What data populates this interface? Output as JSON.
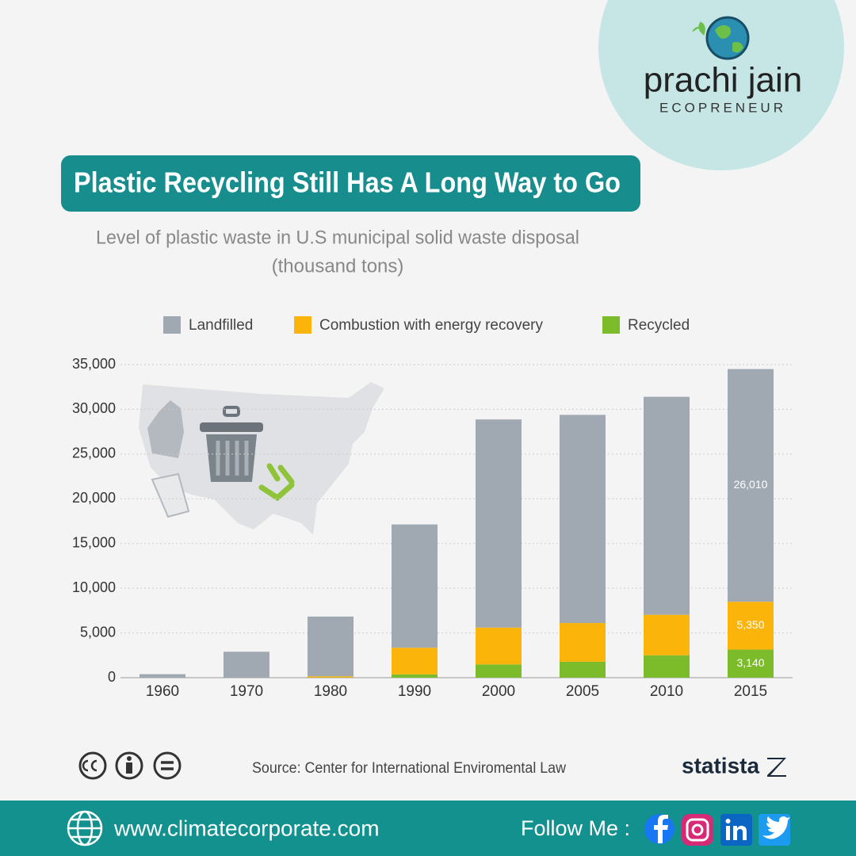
{
  "brand": {
    "name": "prachi jain",
    "tagline": "ECOPRENEUR"
  },
  "chart_data": {
    "type": "stacked-bar",
    "title": "Plastic Recycling Still Has A Long Way to Go",
    "subtitle": [
      "Level of plastic waste in U.S municipal solid waste disposal",
      "(thousand tons)"
    ],
    "categories": [
      "1960",
      "1970",
      "1980",
      "1990",
      "2000",
      "2005",
      "2010",
      "2015"
    ],
    "series": [
      {
        "name": "Recycled",
        "color": "#7cbc2a",
        "values": [
          0,
          0,
          20,
          370,
          1480,
          1780,
          2500,
          3140
        ],
        "value_labels": [
          null,
          null,
          null,
          null,
          null,
          null,
          null,
          "3,140"
        ]
      },
      {
        "name": "Combustion with energy recovery",
        "color": "#fbb40a",
        "values": [
          0,
          0,
          140,
          2980,
          4120,
          4330,
          4530,
          5350
        ],
        "value_labels": [
          null,
          null,
          null,
          null,
          null,
          null,
          null,
          "5,350"
        ]
      },
      {
        "name": "Landfilled",
        "color": "#a0a9b2",
        "values": [
          390,
          2900,
          6670,
          13780,
          23270,
          23270,
          24370,
          26010
        ],
        "value_labels": [
          null,
          null,
          null,
          null,
          null,
          null,
          null,
          "26,010"
        ]
      }
    ],
    "legend_order": [
      2,
      1,
      0
    ],
    "ylim": [
      0,
      35000
    ],
    "yticks": [
      0,
      {
        "value": 5000,
        "label": "5,000"
      },
      {
        "value": 10000,
        "label": "10,000"
      },
      {
        "value": 15000,
        "label": "15,000"
      },
      {
        "value": 20000,
        "label": "20,000"
      },
      {
        "value": 25000,
        "label": "25,000"
      },
      {
        "value": 30000,
        "label": "30,000"
      },
      {
        "value": 35000,
        "label": "35,000"
      }
    ],
    "grid": true,
    "source": "Source: Center for International Enviromental Law",
    "publisher": "statista"
  },
  "footer": {
    "website": "www.climatecorporate.com",
    "follow": "Follow Me :"
  }
}
